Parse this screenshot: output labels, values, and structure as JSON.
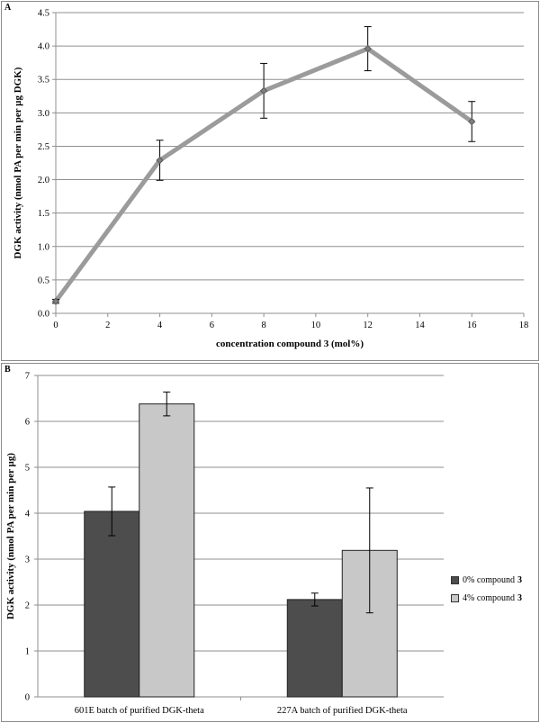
{
  "chart_data": [
    {
      "panel_label": "A",
      "type": "line",
      "xlabel": "concentration compound 3 (mol%)",
      "ylabel": "DGK activity (nmol PA per min per µg DGK)",
      "xlim": [
        0,
        18
      ],
      "ylim": [
        0,
        4.5
      ],
      "x_ticks": [
        "0",
        "2",
        "4",
        "6",
        "8",
        "10",
        "12",
        "14",
        "16",
        "18"
      ],
      "y_ticks": [
        "0.0",
        "0.5",
        "1.0",
        "1.5",
        "2.0",
        "2.5",
        "3.0",
        "3.5",
        "4.0",
        "4.5"
      ],
      "grid": "horizontal",
      "series": [
        {
          "x": [
            0,
            4,
            8,
            12,
            16
          ],
          "values": [
            0.18,
            2.29,
            3.33,
            3.96,
            2.87
          ],
          "error": [
            0.03,
            0.3,
            0.41,
            0.33,
            0.3
          ],
          "color": "#9b9b9b"
        }
      ]
    },
    {
      "panel_label": "B",
      "type": "bar",
      "xlabel": "",
      "ylabel": "DGK activity (nmol PA per min per µg)",
      "ylim": [
        0,
        7
      ],
      "y_ticks": [
        "0",
        "1",
        "2",
        "3",
        "4",
        "5",
        "6",
        "7"
      ],
      "grid": "horizontal",
      "categories": [
        "601E batch of purified DGK-theta",
        "227A batch of purified DGK-theta"
      ],
      "series": [
        {
          "name": "0% compound 3",
          "values": [
            4.04,
            2.12
          ],
          "error": [
            0.53,
            0.14
          ],
          "color": "#4d4d4d"
        },
        {
          "name": "4% compound 3",
          "values": [
            6.38,
            3.19
          ],
          "error": [
            0.26,
            1.36
          ],
          "color": "#c8c8c8"
        }
      ],
      "legend": {
        "position": "right",
        "items": [
          {
            "text": "0% compound ",
            "bold": "3",
            "color": "#4d4d4d"
          },
          {
            "text": "4% compound ",
            "bold": "3",
            "color": "#c8c8c8"
          }
        ]
      }
    }
  ]
}
